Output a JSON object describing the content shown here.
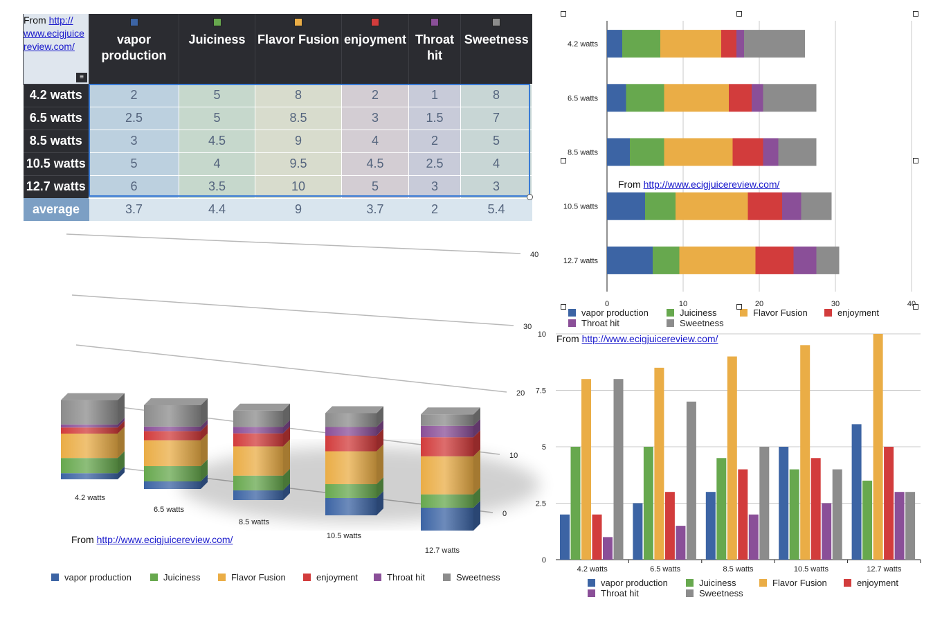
{
  "colors": {
    "vapor production": "#3c64a4",
    "Juiciness": "#67a84e",
    "Flavor Fusion": "#eaad46",
    "enjoyment": "#d23c3c",
    "Throat hit": "#8a4f98",
    "Sweetness": "#8c8c8c"
  },
  "table": {
    "source_prefix": "From ",
    "source_link": "http://www.ecigjuicereview.com/",
    "source_link_lines": [
      "http://",
      "www.ecigjuice",
      "review.com/"
    ],
    "menu_icon": "column-menu-icon",
    "columns": [
      {
        "lines": [
          "vapor",
          "production"
        ]
      },
      {
        "lines": [
          "Juiciness"
        ]
      },
      {
        "lines": [
          "Flavor Fusion"
        ]
      },
      {
        "lines": [
          "enjoyment"
        ]
      },
      {
        "lines": [
          "Throat",
          "hit"
        ]
      },
      {
        "lines": [
          "Sweetness"
        ]
      }
    ],
    "rows": [
      {
        "label": "4.2 watts",
        "values": [
          "2",
          "5",
          "8",
          "2",
          "1",
          "8"
        ]
      },
      {
        "label": "6.5 watts",
        "values": [
          "2.5",
          "5",
          "8.5",
          "3",
          "1.5",
          "7"
        ]
      },
      {
        "label": "8.5 watts",
        "values": [
          "3",
          "4.5",
          "9",
          "4",
          "2",
          "5"
        ]
      },
      {
        "label": "10.5 watts",
        "values": [
          "5",
          "4",
          "9.5",
          "4.5",
          "2.5",
          "4"
        ]
      },
      {
        "label": "12.7 watts",
        "values": [
          "6",
          "3.5",
          "10",
          "5",
          "3",
          "3"
        ]
      }
    ],
    "average": {
      "label": "average",
      "values": [
        "3.7",
        "4.4",
        "9",
        "3.7",
        "2",
        "5.4"
      ]
    }
  },
  "chart_data": [
    {
      "type": "bar",
      "subtype": "stacked-3d-column",
      "categories": [
        "4.2 watts",
        "6.5 watts",
        "8.5 watts",
        "10.5 watts",
        "12.7 watts"
      ],
      "series": [
        {
          "name": "vapor production",
          "values": [
            2,
            2.5,
            3,
            5,
            6
          ]
        },
        {
          "name": "Juiciness",
          "values": [
            5,
            5,
            4.5,
            4,
            3.5
          ]
        },
        {
          "name": "Flavor Fusion",
          "values": [
            8,
            8.5,
            9,
            9.5,
            10
          ]
        },
        {
          "name": "enjoyment",
          "values": [
            2,
            3,
            4,
            4.5,
            5
          ]
        },
        {
          "name": "Throat hit",
          "values": [
            1,
            1.5,
            2,
            2.5,
            3
          ]
        },
        {
          "name": "Sweetness",
          "values": [
            8,
            7,
            5,
            4,
            3
          ]
        }
      ],
      "yticks": [
        "0",
        "10",
        "20",
        "30",
        "40"
      ],
      "ylim": [
        0,
        40
      ],
      "annotation_prefix": "From ",
      "annotation_link": "http://www.ecigjuicereview.com/",
      "legend": "bottom"
    },
    {
      "type": "bar",
      "subtype": "stacked-horizontal",
      "categories": [
        "4.2 watts",
        "6.5 watts",
        "8.5 watts",
        "10.5 watts",
        "12.7 watts"
      ],
      "series": [
        {
          "name": "vapor production",
          "values": [
            2,
            2.5,
            3,
            5,
            6
          ]
        },
        {
          "name": "Juiciness",
          "values": [
            5,
            5,
            4.5,
            4,
            3.5
          ]
        },
        {
          "name": "Flavor Fusion",
          "values": [
            8,
            8.5,
            9,
            9.5,
            10
          ]
        },
        {
          "name": "enjoyment",
          "values": [
            2,
            3,
            4,
            4.5,
            5
          ]
        },
        {
          "name": "Throat hit",
          "values": [
            1,
            1.5,
            2,
            2.5,
            3
          ]
        },
        {
          "name": "Sweetness",
          "values": [
            8,
            7,
            5,
            4,
            3
          ]
        }
      ],
      "xticks": [
        "0",
        "10",
        "20",
        "30",
        "40"
      ],
      "xlim": [
        0,
        40
      ],
      "grid": true,
      "annotation_prefix": "From ",
      "annotation_link": "http://www.ecigjuicereview.com/",
      "legend": "bottom"
    },
    {
      "type": "bar",
      "subtype": "grouped",
      "categories": [
        "4.2 watts",
        "6.5 watts",
        "8.5 watts",
        "10.5 watts",
        "12.7 watts"
      ],
      "series": [
        {
          "name": "vapor production",
          "values": [
            2,
            2.5,
            3,
            5,
            6
          ]
        },
        {
          "name": "Juiciness",
          "values": [
            5,
            5,
            4.5,
            4,
            3.5
          ]
        },
        {
          "name": "Flavor Fusion",
          "values": [
            8,
            8.5,
            9,
            9.5,
            10
          ]
        },
        {
          "name": "enjoyment",
          "values": [
            2,
            3,
            4,
            4.5,
            5
          ]
        },
        {
          "name": "Throat hit",
          "values": [
            1,
            1.5,
            2,
            2.5,
            3
          ]
        },
        {
          "name": "Sweetness",
          "values": [
            8,
            7,
            5,
            4,
            3
          ]
        }
      ],
      "yticks": [
        "0",
        "2.5",
        "5",
        "7.5",
        "10"
      ],
      "ylim": [
        0,
        10
      ],
      "grid": true,
      "annotation_prefix": "From ",
      "annotation_link": "http://www.ecigjuicereview.com/",
      "legend": "bottom"
    }
  ]
}
